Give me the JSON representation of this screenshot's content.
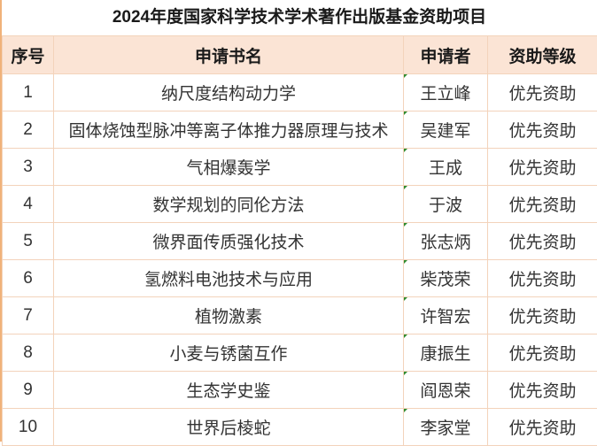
{
  "title": "2024年度国家科学技术学术著作出版基金资助项目",
  "columns": [
    "序号",
    "申请书名",
    "申请者",
    "资助等级"
  ],
  "rows": [
    {
      "no": "1",
      "book": "纳尺度结构动力学",
      "applicant": "王立峰",
      "level": "优先资助"
    },
    {
      "no": "2",
      "book": "固体烧蚀型脉冲等离子体推力器原理与技术",
      "applicant": "吴建军",
      "level": "优先资助"
    },
    {
      "no": "3",
      "book": "气相爆轰学",
      "applicant": "王成",
      "level": "优先资助"
    },
    {
      "no": "4",
      "book": "数学规划的同伦方法",
      "applicant": "于波",
      "level": "优先资助"
    },
    {
      "no": "5",
      "book": "微界面传质强化技术",
      "applicant": "张志炳",
      "level": "优先资助"
    },
    {
      "no": "6",
      "book": "氢燃料电池技术与应用",
      "applicant": "柴茂荣",
      "level": "优先资助"
    },
    {
      "no": "7",
      "book": "植物激素",
      "applicant": "许智宏",
      "level": "优先资助"
    },
    {
      "no": "8",
      "book": "小麦与锈菌互作",
      "applicant": "康振生",
      "level": "优先资助"
    },
    {
      "no": "9",
      "book": "生态学史鉴",
      "applicant": "阎恩荣",
      "level": "优先资助"
    },
    {
      "no": "10",
      "book": "世界后棱蛇",
      "applicant": "李家堂",
      "level": "优先资助"
    }
  ],
  "colors": {
    "header_bg": "#fbe4d5",
    "border": "#f3d3bb",
    "accent": "#f0b27a"
  }
}
